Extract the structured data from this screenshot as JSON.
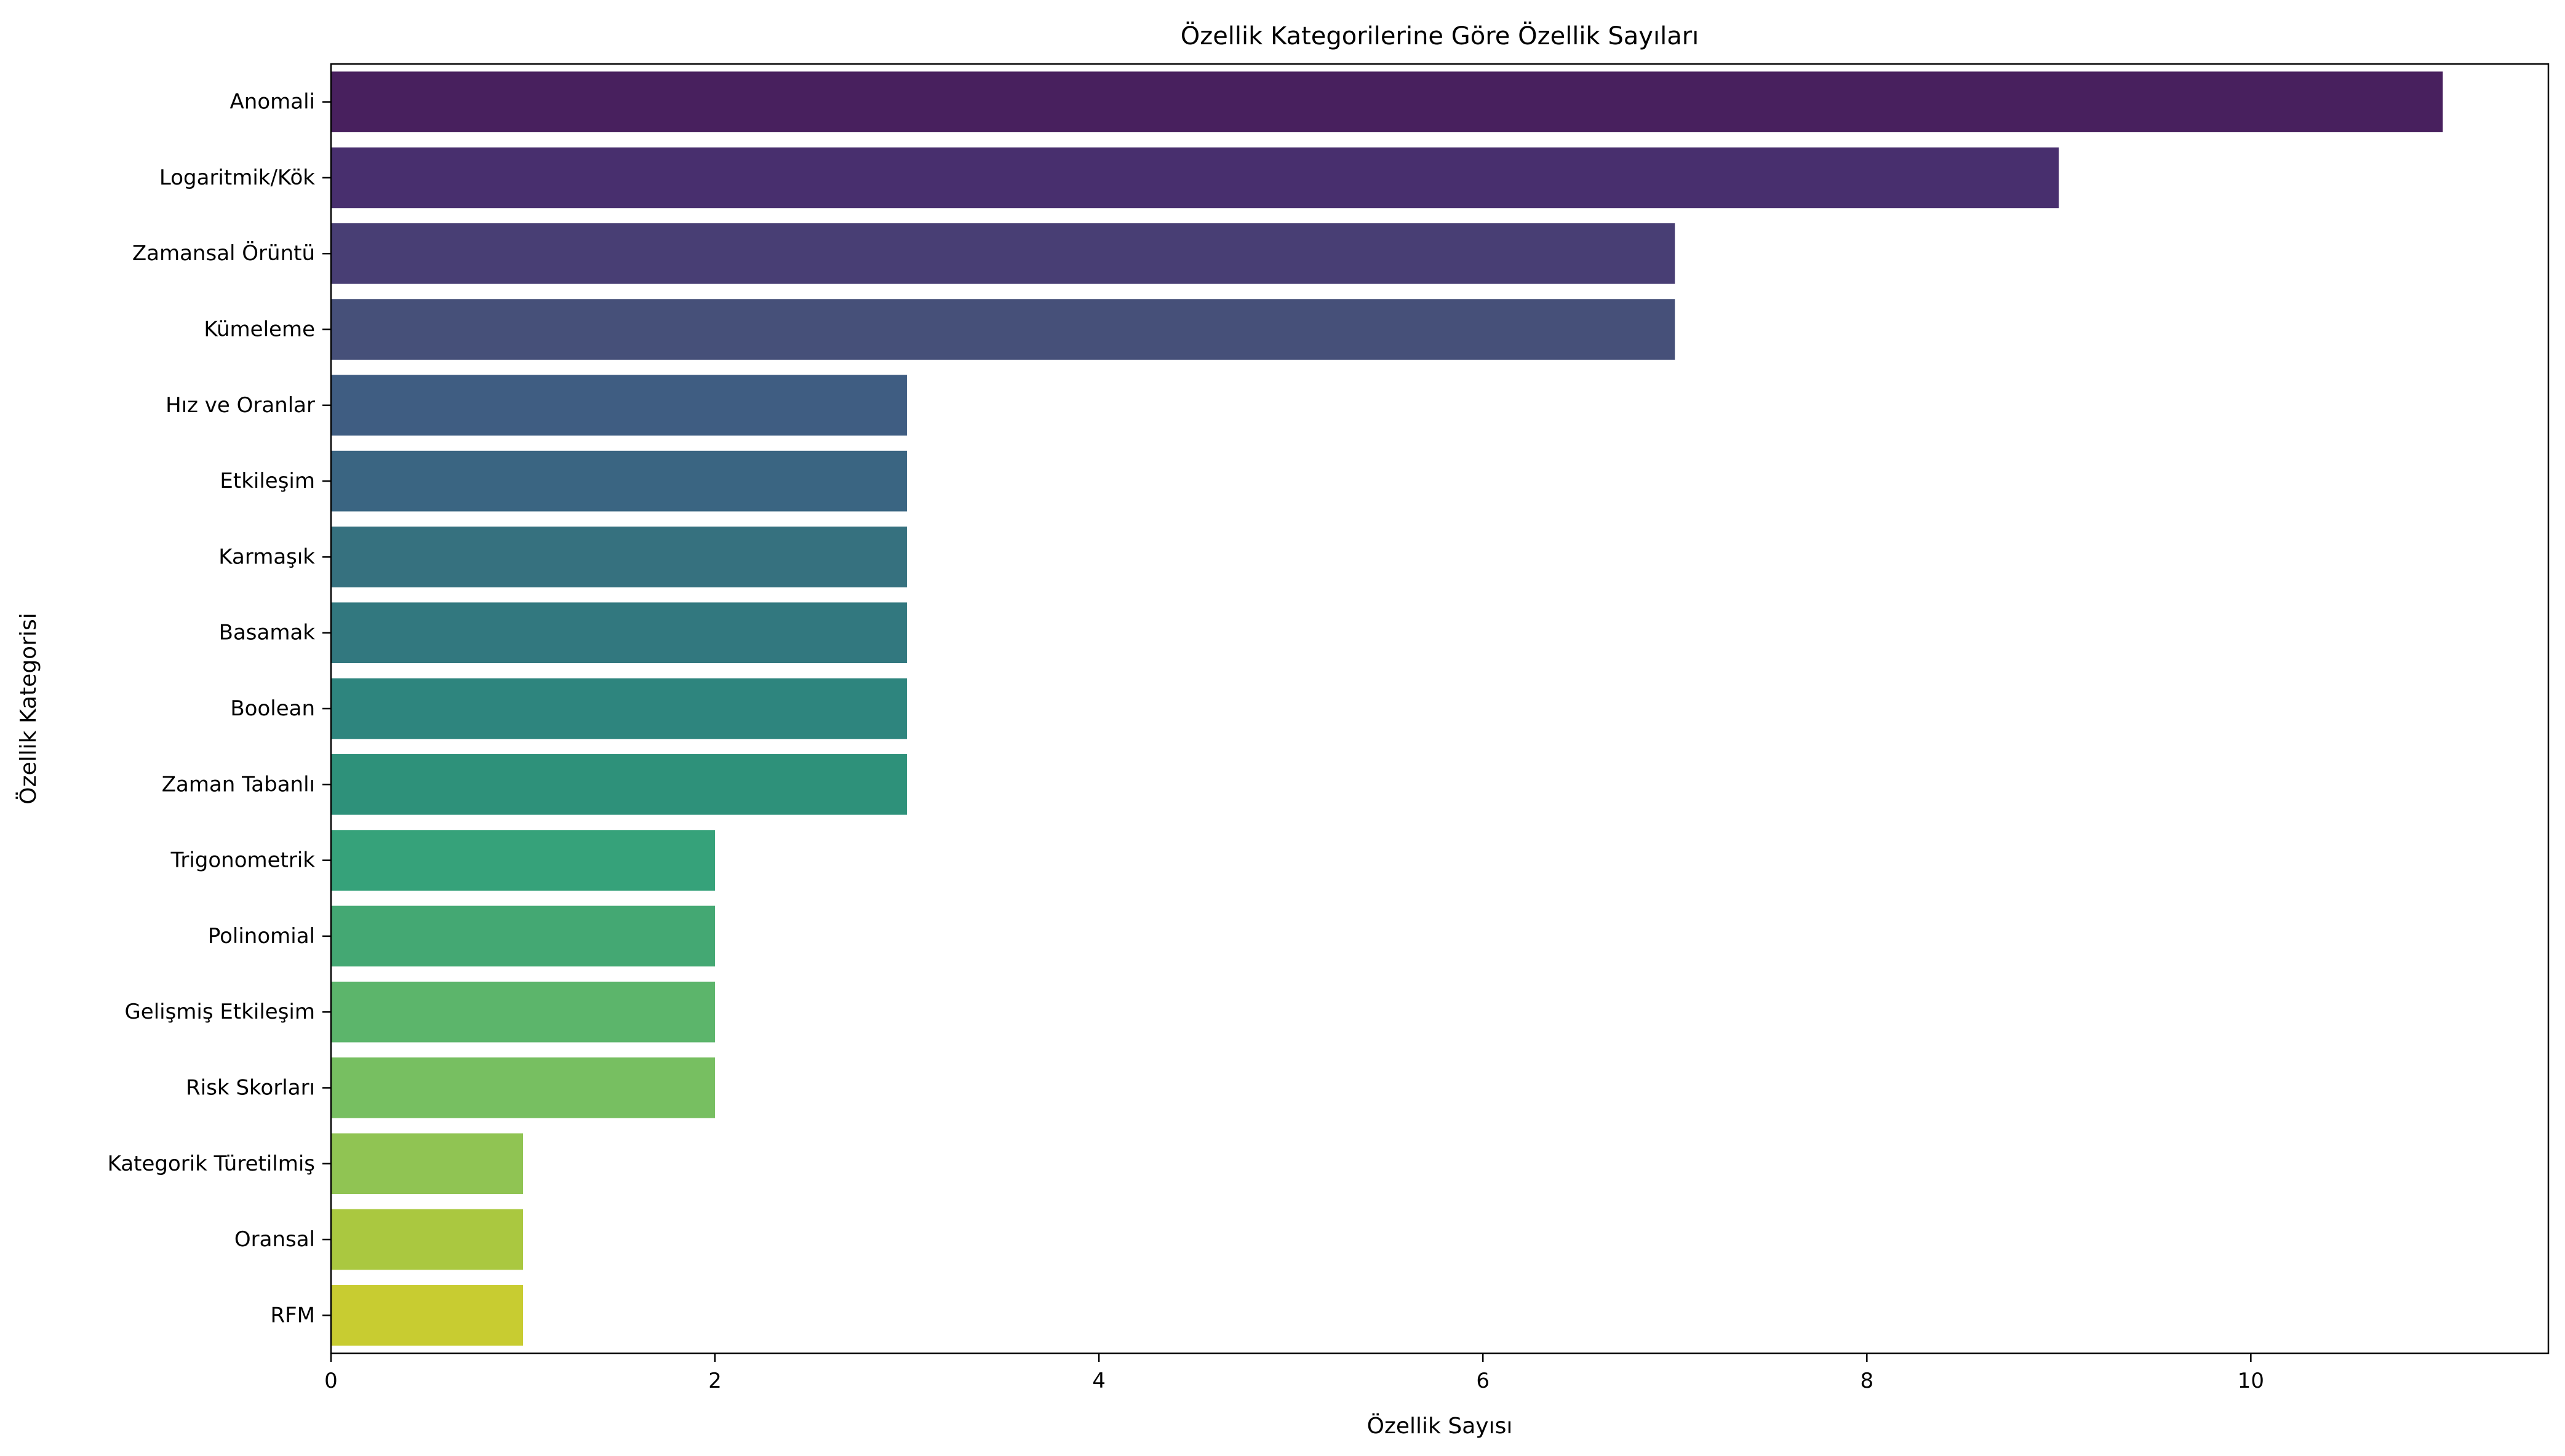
{
  "chart_data": {
    "type": "bar",
    "orientation": "horizontal",
    "title": "Özellik Kategorilerine Göre Özellik Sayıları",
    "xlabel": "Özellik Sayısı",
    "ylabel": "Özellik Kategorisi",
    "xlim": [
      0,
      11.55
    ],
    "xticks": [
      0,
      2,
      4,
      6,
      8,
      10
    ],
    "grid": false,
    "legend": "none",
    "categories": [
      "Anomali",
      "Logaritmik/Kök",
      "Zamansal Örüntü",
      "Kümeleme",
      "Hız ve Oranlar",
      "Etkileşim",
      "Karmaşık",
      "Basamak",
      "Boolean",
      "Zaman Tabanlı",
      "Trigonometrik",
      "Polinomial",
      "Gelişmiş Etkileşim",
      "Risk Skorları",
      "Kategorik Türetilmiş",
      "Oransal",
      "RFM"
    ],
    "values": [
      11,
      9,
      7,
      7,
      3,
      3,
      3,
      3,
      3,
      3,
      2,
      2,
      2,
      2,
      1,
      1,
      1
    ],
    "colors": [
      "#48205e",
      "#482f6e",
      "#483e74",
      "#465079",
      "#3f5d82",
      "#3a6582",
      "#36717f",
      "#32787f",
      "#2e857e",
      "#2e917a",
      "#36a27a",
      "#44a873",
      "#5cb56b",
      "#77bf61",
      "#90c453",
      "#aac840",
      "#c8cc31"
    ]
  }
}
